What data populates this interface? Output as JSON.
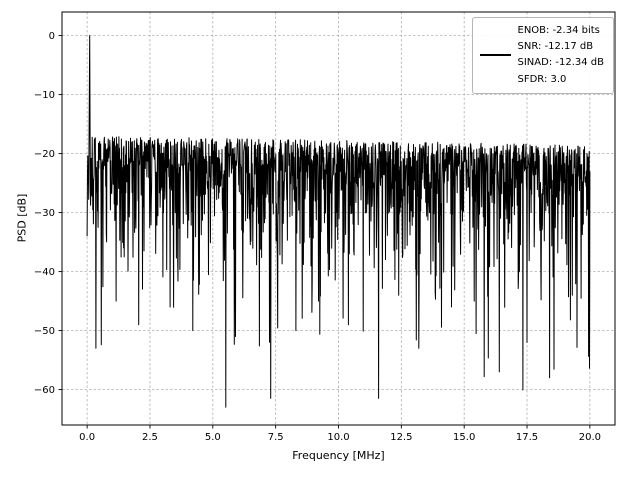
{
  "figure": {
    "xlabel": "Frequency [MHz]",
    "ylabel": "PSD [dB]"
  },
  "legend": {
    "position": "upper right",
    "line_color": "#000000",
    "lines": [
      "ENOB: -2.34 bits",
      "SNR: -12.17 dB",
      "SINAD: -12.34 dB",
      "SFDR: 3.0"
    ]
  },
  "chart_data": {
    "type": "line",
    "title": "",
    "xlabel": "Frequency [MHz]",
    "ylabel": "PSD [dB]",
    "xlim": [
      -1,
      21
    ],
    "ylim": [
      -66,
      4
    ],
    "x_ticks": [
      0.0,
      2.5,
      5.0,
      7.5,
      10.0,
      12.5,
      15.0,
      17.5,
      20.0
    ],
    "x_tick_labels": [
      "0.0",
      "2.5",
      "5.0",
      "7.5",
      "10.0",
      "12.5",
      "15.0",
      "17.5",
      "20.0"
    ],
    "y_ticks": [
      0,
      -10,
      -20,
      -30,
      -40,
      -50,
      -60
    ],
    "y_tick_labels": [
      "0",
      "−10",
      "−20",
      "−30",
      "−40",
      "−50",
      "−60"
    ],
    "grid": true,
    "legend_position": "upper right",
    "stats": {
      "enob_bits": -2.34,
      "snr_db": -12.17,
      "sinad_db": -12.34,
      "sfdr": 3.0
    },
    "series": [
      {
        "name": "PSD",
        "color": "#000000",
        "description": "Power spectral density of ADC output over 0-20 MHz: fundamental tone near DC reaching 0 dB, dense noise floor across the whole band",
        "signal_peak": {
          "x_mhz": 0.1,
          "y_db": 0
        },
        "noise_floor": {
          "upper_envelope_db_start": -17,
          "upper_envelope_db_end": -18.5,
          "median_db": -24,
          "min_db": -61.5
        },
        "n_points": 1600,
        "seed": 20,
        "notable_dips": [
          [
            0.35,
            -53
          ],
          [
            1.15,
            -45
          ],
          [
            2.05,
            -49
          ],
          [
            3.3,
            -46
          ],
          [
            4.2,
            -50
          ],
          [
            5.9,
            -51
          ],
          [
            7.3,
            -61.5
          ],
          [
            8.3,
            -50
          ],
          [
            9.2,
            -45
          ],
          [
            10.4,
            -49
          ],
          [
            11.6,
            -61.5
          ],
          [
            12.4,
            -44
          ],
          [
            13.2,
            -53
          ],
          [
            14.5,
            -46
          ],
          [
            15.4,
            -45
          ],
          [
            16.4,
            -57
          ],
          [
            17.5,
            -52
          ],
          [
            18.4,
            -58
          ],
          [
            19.3,
            -44
          ]
        ]
      }
    ]
  },
  "colors": {
    "trace": "#000000",
    "grid": "#b0b0b0",
    "axis": "#000000",
    "background": "#ffffff"
  }
}
